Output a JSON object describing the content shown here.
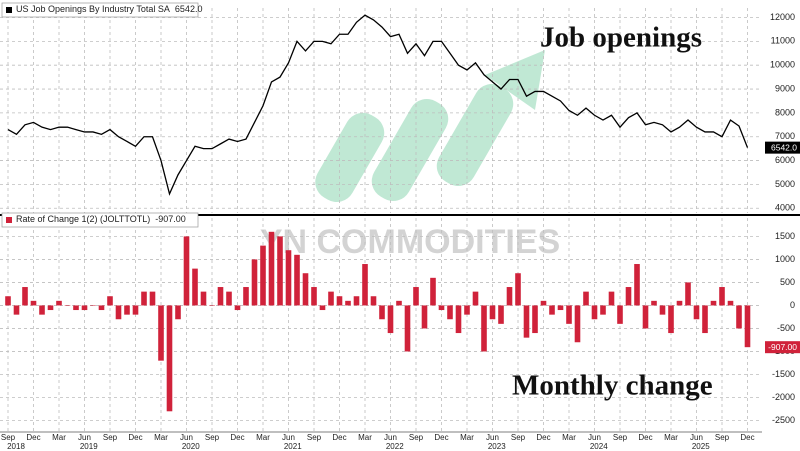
{
  "chart_data": [
    {
      "type": "line",
      "categories": [
        "Sep 2018",
        "Oct 2018",
        "Nov 2018",
        "Dec 2018",
        "Jan 2019",
        "Feb 2019",
        "Mar 2019",
        "Apr 2019",
        "May 2019",
        "Jun 2019",
        "Jul 2019",
        "Aug 2019",
        "Sep 2019",
        "Oct 2019",
        "Nov 2019",
        "Dec 2019",
        "Jan 2020",
        "Feb 2020",
        "Mar 2020",
        "Apr 2020",
        "May 2020",
        "Jun 2020",
        "Jul 2020",
        "Aug 2020",
        "Sep 2020",
        "Oct 2020",
        "Nov 2020",
        "Dec 2020",
        "Jan 2021",
        "Feb 2021",
        "Mar 2021",
        "Apr 2021",
        "May 2021",
        "Jun 2021",
        "Jul 2021",
        "Aug 2021",
        "Sep 2021",
        "Oct 2021",
        "Nov 2021",
        "Dec 2021",
        "Jan 2022",
        "Feb 2022",
        "Mar 2022",
        "Apr 2022",
        "May 2022",
        "Jun 2022",
        "Jul 2022",
        "Aug 2022",
        "Sep 2022",
        "Oct 2022",
        "Nov 2022",
        "Dec 2022",
        "Jan 2023",
        "Feb 2023",
        "Mar 2023",
        "Apr 2023",
        "May 2023",
        "Jun 2023",
        "Jul 2023",
        "Aug 2023",
        "Sep 2023",
        "Oct 2023",
        "Nov 2023",
        "Dec 2023",
        "Jan 2024",
        "Feb 2024",
        "Mar 2024",
        "Apr 2024",
        "May 2024",
        "Jun 2024",
        "Jul 2024",
        "Aug 2024",
        "Sep 2024",
        "Oct 2024",
        "Nov 2024",
        "Dec 2024",
        "Jan 2025",
        "Feb 2025",
        "Mar 2025",
        "Apr 2025",
        "May 2025",
        "Jun 2025",
        "Jul 2025",
        "Aug 2025",
        "Sep 2025",
        "Oct 2025",
        "Nov 2025",
        "Dec 2025"
      ],
      "series": [
        {
          "name": "US Job Openings By Industry Total SA",
          "last_label": "6542.0",
          "color": "#000000",
          "values": [
            7300,
            7100,
            7500,
            7600,
            7400,
            7300,
            7400,
            7400,
            7300,
            7200,
            7200,
            7100,
            7300,
            7000,
            6800,
            6600,
            7000,
            7000,
            6000,
            4600,
            5400,
            6000,
            6600,
            6500,
            6500,
            6700,
            6900,
            6800,
            6900,
            7600,
            8300,
            9300,
            9500,
            10100,
            11000,
            10600,
            11000,
            11000,
            10900,
            11300,
            11300,
            11800,
            12100,
            11900,
            11600,
            11200,
            11300,
            10500,
            10900,
            10400,
            11000,
            11000,
            10500,
            10000,
            9800,
            10100,
            9600,
            9300,
            9000,
            9400,
            9400,
            8700,
            8900,
            8900,
            8700,
            8500,
            8100,
            7900,
            8200,
            7900,
            7700,
            7900,
            7400,
            7800,
            8000,
            7500,
            7600,
            7500,
            7200,
            7400,
            7700,
            7400,
            7200,
            7200,
            7000,
            7700,
            7449,
            6542
          ]
        }
      ],
      "ylim": [
        3800,
        12400
      ],
      "yticks": [
        4000,
        5000,
        6000,
        7000,
        8000,
        9000,
        10000,
        11000,
        12000
      ],
      "grid": true,
      "annotation": "Job openings"
    },
    {
      "type": "bar",
      "categories": [
        "Sep 2018",
        "Oct 2018",
        "Nov 2018",
        "Dec 2018",
        "Jan 2019",
        "Feb 2019",
        "Mar 2019",
        "Apr 2019",
        "May 2019",
        "Jun 2019",
        "Jul 2019",
        "Aug 2019",
        "Sep 2019",
        "Oct 2019",
        "Nov 2019",
        "Dec 2019",
        "Jan 2020",
        "Feb 2020",
        "Mar 2020",
        "Apr 2020",
        "May 2020",
        "Jun 2020",
        "Jul 2020",
        "Aug 2020",
        "Sep 2020",
        "Oct 2020",
        "Nov 2020",
        "Dec 2020",
        "Jan 2021",
        "Feb 2021",
        "Mar 2021",
        "Apr 2021",
        "May 2021",
        "Jun 2021",
        "Jul 2021",
        "Aug 2021",
        "Sep 2021",
        "Oct 2021",
        "Nov 2021",
        "Dec 2021",
        "Jan 2022",
        "Feb 2022",
        "Mar 2022",
        "Apr 2022",
        "May 2022",
        "Jun 2022",
        "Jul 2022",
        "Aug 2022",
        "Sep 2022",
        "Oct 2022",
        "Nov 2022",
        "Dec 2022",
        "Jan 2023",
        "Feb 2023",
        "Mar 2023",
        "Apr 2023",
        "May 2023",
        "Jun 2023",
        "Jul 2023",
        "Aug 2023",
        "Sep 2023",
        "Oct 2023",
        "Nov 2023",
        "Dec 2023",
        "Jan 2024",
        "Feb 2024",
        "Mar 2024",
        "Apr 2024",
        "May 2024",
        "Jun 2024",
        "Jul 2024",
        "Aug 2024",
        "Sep 2024",
        "Oct 2024",
        "Nov 2024",
        "Dec 2024",
        "Jan 2025",
        "Feb 2025",
        "Mar 2025",
        "Apr 2025",
        "May 2025",
        "Jun 2025",
        "Jul 2025",
        "Aug 2025",
        "Sep 2025",
        "Oct 2025",
        "Nov 2025",
        "Dec 2025"
      ],
      "series": [
        {
          "name": "Rate of Change 1(2) (JOLTTOTL)",
          "last_label": "-907.00",
          "color": "#d0223a",
          "values": [
            200,
            -200,
            400,
            100,
            -200,
            -100,
            100,
            0,
            -100,
            -100,
            0,
            -100,
            200,
            -300,
            -200,
            -200,
            300,
            300,
            -1200,
            -2300,
            -300,
            1500,
            800,
            300,
            0,
            400,
            300,
            -100,
            400,
            1000,
            1300,
            1600,
            1500,
            1200,
            1100,
            700,
            400,
            -100,
            300,
            200,
            100,
            200,
            900,
            200,
            -300,
            -600,
            100,
            -1000,
            400,
            -500,
            600,
            -100,
            -300,
            -600,
            -200,
            300,
            -1000,
            -300,
            -400,
            400,
            700,
            -700,
            -600,
            100,
            -200,
            -100,
            -400,
            -800,
            300,
            -300,
            -200,
            300,
            -400,
            400,
            900,
            -500,
            100,
            -200,
            -600,
            100,
            500,
            -300,
            -600,
            100,
            400,
            100,
            -500,
            -907
          ]
        }
      ],
      "ylim": [
        -2750,
        1900
      ],
      "yticks": [
        -2500,
        -2000,
        -1500,
        -1000,
        -500,
        0,
        500,
        1000,
        1500
      ],
      "grid": true,
      "annotation": "Monthly change",
      "xticks": [
        {
          "value": "Sep 2018",
          "label": "Sep"
        },
        {
          "value": "Dec 2018",
          "label": "Dec"
        },
        {
          "value": "Mar 2019",
          "label": "Mar"
        },
        {
          "value": "Jun 2019",
          "label": "Jun"
        },
        {
          "value": "Sep 2019",
          "label": "Sep"
        },
        {
          "value": "Dec 2019",
          "label": "Dec"
        },
        {
          "value": "Mar 2020",
          "label": "Mar"
        },
        {
          "value": "Jun 2020",
          "label": "Jun"
        },
        {
          "value": "Sep 2020",
          "label": "Sep"
        },
        {
          "value": "Dec 2020",
          "label": "Dec"
        },
        {
          "value": "Mar 2021",
          "label": "Mar"
        },
        {
          "value": "Jun 2021",
          "label": "Jun"
        },
        {
          "value": "Sep 2021",
          "label": "Sep"
        },
        {
          "value": "Dec 2021",
          "label": "Dec"
        },
        {
          "value": "Mar 2022",
          "label": "Mar"
        },
        {
          "value": "Jun 2022",
          "label": "Jun"
        },
        {
          "value": "Sep 2022",
          "label": "Sep"
        },
        {
          "value": "Dec 2022",
          "label": "Dec"
        },
        {
          "value": "Mar 2023",
          "label": "Mar"
        },
        {
          "value": "Jun 2023",
          "label": "Jun"
        },
        {
          "value": "Sep 2023",
          "label": "Sep"
        },
        {
          "value": "Dec 2023",
          "label": "Dec"
        },
        {
          "value": "Mar 2024",
          "label": "Mar"
        },
        {
          "value": "Jun 2024",
          "label": "Jun"
        },
        {
          "value": "Sep 2024",
          "label": "Sep"
        },
        {
          "value": "Dec 2024",
          "label": "Dec"
        },
        {
          "value": "Mar 2025",
          "label": "Mar"
        },
        {
          "value": "Jun 2025",
          "label": "Jun"
        },
        {
          "value": "Sep 2025",
          "label": "Sep"
        },
        {
          "value": "Dec 2025",
          "label": "Dec"
        }
      ],
      "years": [
        "2018",
        "2019",
        "2020",
        "2021",
        "2022",
        "2023",
        "2024",
        "2025"
      ]
    }
  ],
  "watermark": "YN COMMODITIES"
}
